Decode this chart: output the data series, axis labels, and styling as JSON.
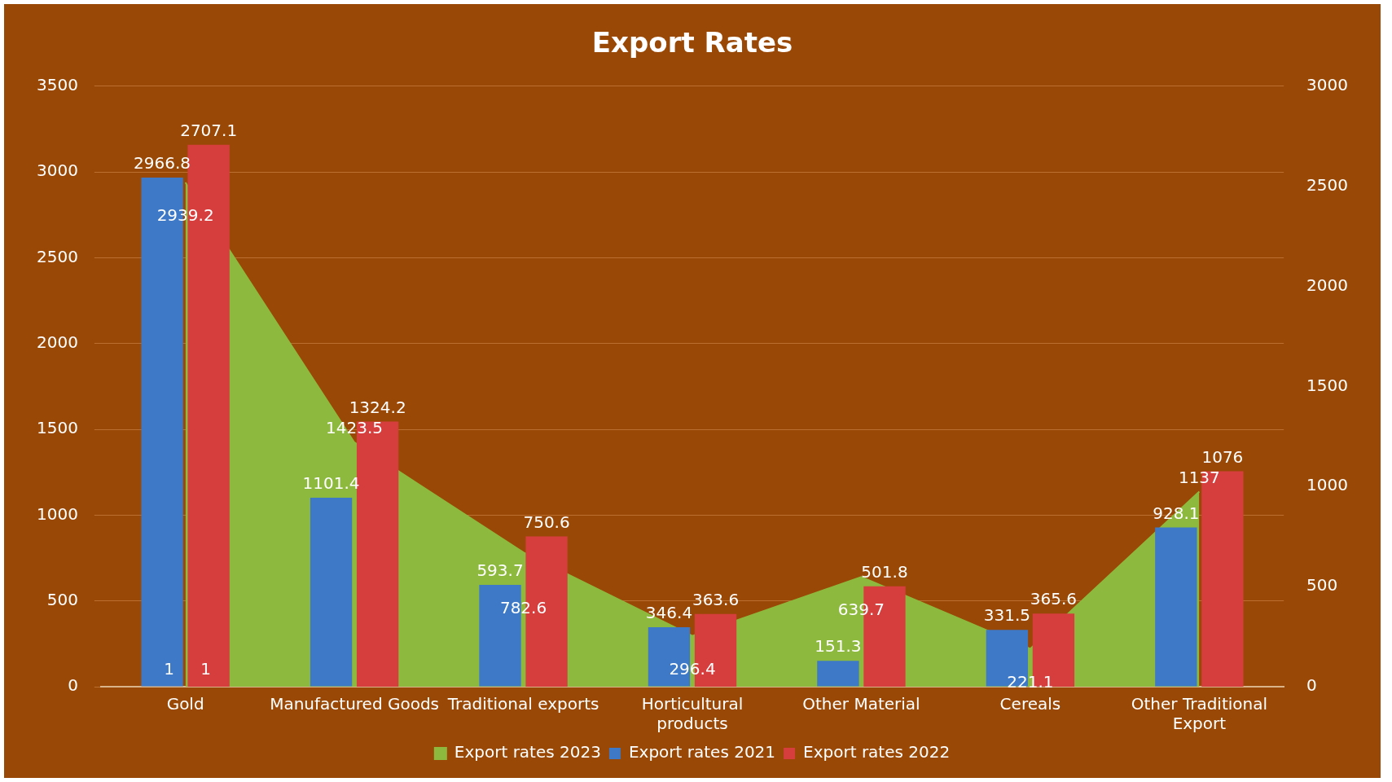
{
  "chart_data": {
    "type": "bar",
    "title": "Export Rates",
    "categories": [
      "Gold",
      "Manufactured Goods",
      "Traditional exports",
      "Horticultural products",
      "Other Material",
      "Cereals",
      "Other Traditional Export"
    ],
    "series": [
      {
        "name": "Export rates 2023",
        "type": "area",
        "color": "#8dba3e",
        "values": [
          2939.2,
          1423.5,
          782.6,
          296.4,
          639.7,
          221.1,
          1137
        ]
      },
      {
        "name": "Export rates 2021",
        "color": "#3d79c6",
        "values": [
          2966.8,
          1101.4,
          593.7,
          346.4,
          151.3,
          331.5,
          928.1
        ]
      },
      {
        "name": "Export rates 2022",
        "axis": "y2",
        "color": "#d63e3e",
        "values": [
          2707.1,
          1324.2,
          750.6,
          363.6,
          501.8,
          365.6,
          1076
        ]
      }
    ],
    "ylim": [
      0,
      3500
    ],
    "yticks": [
      0,
      500,
      1000,
      1500,
      2000,
      2500,
      3000,
      3500
    ],
    "y2lim": [
      0,
      3000
    ],
    "y2ticks": [
      0,
      500,
      1000,
      1500,
      2000,
      2500,
      3000
    ],
    "grid": "y",
    "legend": "bottom",
    "data_labels": true,
    "annotations": [
      "1",
      "1"
    ]
  }
}
